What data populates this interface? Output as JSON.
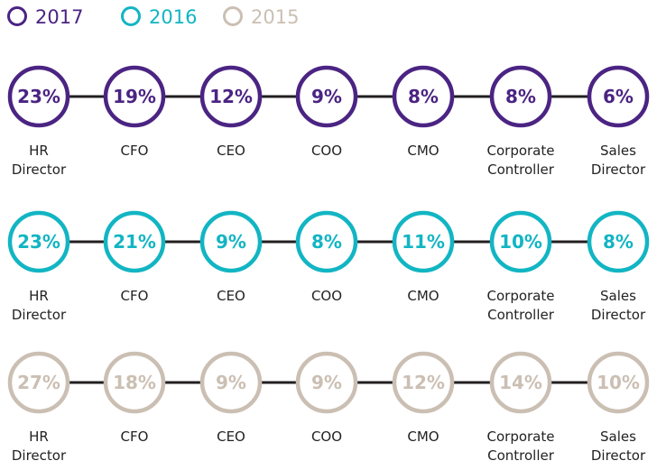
{
  "chart_data": {
    "type": "bubble-row",
    "roles": [
      [
        "HR",
        "Director"
      ],
      [
        "CFO"
      ],
      [
        "CEO"
      ],
      [
        "COO"
      ],
      [
        "CMO"
      ],
      [
        "Corporate",
        "Controller"
      ],
      [
        "Sales",
        "Director"
      ]
    ],
    "series": [
      {
        "name": "2017",
        "color": "#4b2483",
        "values": [
          "23%",
          "19%",
          "12%",
          "9%",
          "8%",
          "8%",
          "6%"
        ]
      },
      {
        "name": "2016",
        "color": "#12b5c3",
        "values": [
          "23%",
          "21%",
          "9%",
          "8%",
          "11%",
          "10%",
          "8%"
        ]
      },
      {
        "name": "2015",
        "color": "#cbbfb3",
        "values": [
          "27%",
          "18%",
          "9%",
          "9%",
          "12%",
          "14%",
          "10%"
        ]
      }
    ],
    "legend_position": "top-left",
    "connector_color": "#231f20"
  }
}
